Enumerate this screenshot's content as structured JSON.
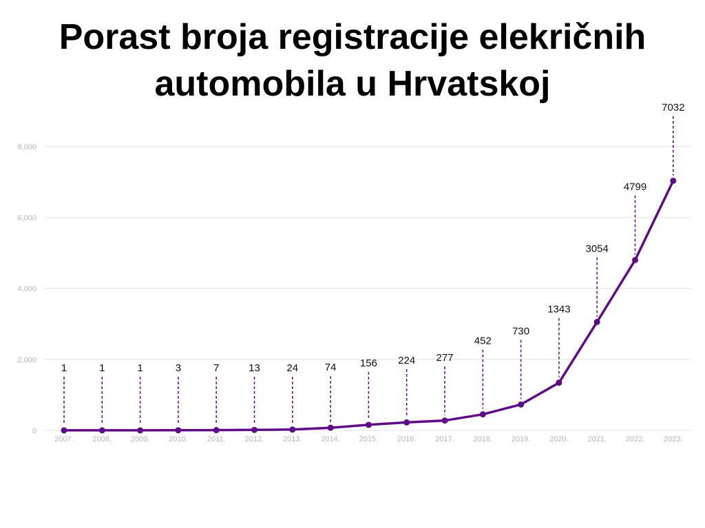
{
  "title": {
    "line1": "Porast broja registracije elekričnih",
    "line2": "automobila u Hrvatskoj"
  },
  "chart_data": {
    "type": "line",
    "title": "Porast broja registracije elekričnih automobila u Hrvatskoj",
    "xlabel": "",
    "ylabel": "",
    "categories": [
      "2007.",
      "2008.",
      "2009.",
      "2010.",
      "2011.",
      "2012.",
      "2013.",
      "2014.",
      "2015.",
      "2016.",
      "2017.",
      "2018.",
      "2019.",
      "2020.",
      "2021.",
      "2022.",
      "2023."
    ],
    "series": [
      {
        "values": [
          1,
          1,
          1,
          3,
          7,
          13,
          24,
          74,
          156,
          224,
          277,
          452,
          730,
          1343,
          3054,
          4799,
          7032
        ]
      }
    ],
    "data_labels": [
      "1",
      "1",
      "1",
      "3",
      "7",
      "13",
      "24",
      "74",
      "156",
      "224",
      "277",
      "452",
      "730",
      "1343",
      "3054",
      "4799",
      "7032"
    ],
    "yticks": [
      0,
      2000,
      4000,
      6000,
      8000
    ],
    "ytick_labels": [
      "0",
      "2,000",
      "4,000",
      "6,000",
      "8,000"
    ],
    "ylim": [
      0,
      8000
    ],
    "grid": true,
    "legend": "none",
    "colors": {
      "line": "#5f0a87",
      "gridline": "#e6e6e6",
      "tick_text": "#b5b5b5",
      "leader_line": "#5f0a87",
      "label_text": "#111111"
    }
  }
}
